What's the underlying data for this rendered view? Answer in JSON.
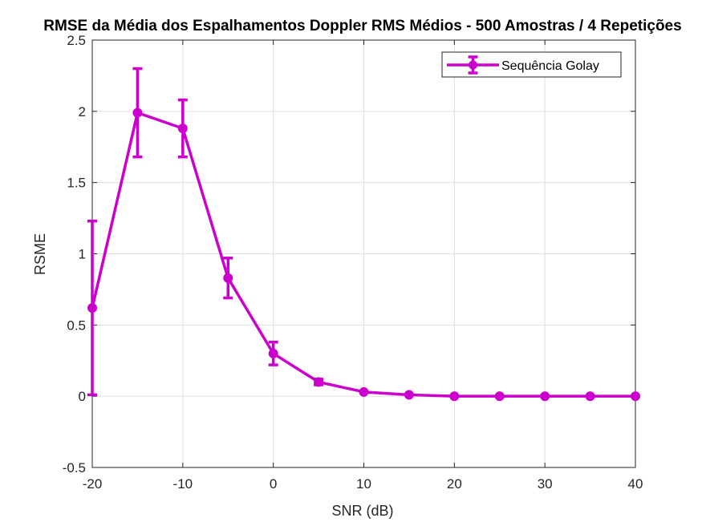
{
  "chart_data": {
    "type": "line",
    "title": "RMSE da Média dos Espalhamentos Doppler RMS Médios - 500 Amostras / 4 Repetições",
    "xlabel": "SNR (dB)",
    "ylabel": "RSME",
    "xlim": [
      -20,
      40
    ],
    "ylim": [
      -0.5,
      2.5
    ],
    "xticks": [
      -20,
      -10,
      0,
      10,
      20,
      30,
      40
    ],
    "xtick_labels": [
      "-20",
      "-10",
      "0",
      "10",
      "20",
      "30",
      "40"
    ],
    "yticks": [
      -0.5,
      0,
      0.5,
      1,
      1.5,
      2,
      2.5
    ],
    "ytick_labels": [
      "-0.5",
      "0",
      "0.5",
      "1",
      "1.5",
      "2",
      "2.5"
    ],
    "grid": true,
    "legend_position": "top-right",
    "series": [
      {
        "name": "Sequência Golay",
        "color": "#CC00CC",
        "x": [
          -20,
          -15,
          -10,
          -5,
          0,
          5,
          10,
          15,
          20,
          25,
          30,
          35,
          40
        ],
        "y": [
          0.62,
          1.99,
          1.88,
          0.83,
          0.3,
          0.1,
          0.03,
          0.01,
          0.0,
          0.0,
          0.0,
          0.0,
          0.0
        ],
        "err_low": [
          0.61,
          0.31,
          0.2,
          0.14,
          0.08,
          0.02,
          0.0,
          0.0,
          0.0,
          0.0,
          0.0,
          0.0,
          0.0
        ],
        "err_high": [
          0.61,
          0.31,
          0.2,
          0.14,
          0.08,
          0.02,
          0.0,
          0.0,
          0.0,
          0.0,
          0.0,
          0.0,
          0.0
        ]
      }
    ]
  }
}
